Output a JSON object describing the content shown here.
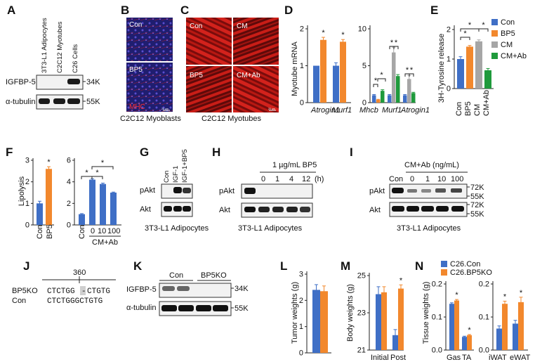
{
  "colors": {
    "con": "#3f6fc6",
    "bp5": "#f2882d",
    "cm": "#a6a6a6",
    "cmab": "#1f9a3c",
    "star": "#111111"
  },
  "panels": {
    "A": {
      "letter": "A",
      "lanes": [
        "3T3-L1 Adipocytes",
        "C2C12 Myotubes",
        "C26 Cells"
      ],
      "rows": [
        "IGFBP-5",
        "α-tubulin"
      ],
      "markers": [
        "34K",
        "55K"
      ]
    },
    "B": {
      "letter": "B",
      "label_top": "Con",
      "label_bottom": "BP5",
      "stain": "MHC",
      "caption": "C2C12 Myoblasts",
      "scale": "20 µm"
    },
    "C": {
      "letter": "C",
      "labels": [
        "Con",
        "CM",
        "BP5",
        "CM+Ab"
      ],
      "caption": "C2C12 Myotubes",
      "scale": "20 µm"
    },
    "D": {
      "letter": "D",
      "ylabel": "Myotube mRNA",
      "left_yticks": [
        "0",
        "1",
        "2"
      ],
      "right_yticks": [
        "0",
        "5",
        "10"
      ],
      "left_genes": [
        "Atrogin1",
        "Murf1"
      ],
      "right_genes": [
        "Mhcb",
        "Murf1",
        "Atrogin1"
      ]
    },
    "E": {
      "letter": "E",
      "ylabel": "3H-Tyrosine release",
      "yticks": [
        "0",
        "1",
        "2"
      ],
      "categories": [
        "Con",
        "BP5",
        "CM",
        "CM+Ab"
      ],
      "legend": [
        "Con",
        "BP5",
        "CM",
        "CM+Ab"
      ]
    },
    "F": {
      "letter": "F",
      "ylabel": "Lipolysis",
      "left_yticks": [
        "0",
        "1",
        "2",
        "3"
      ],
      "right_yticks": [
        "0",
        "2",
        "4",
        "6"
      ],
      "left_categories": [
        "Con",
        "BP5"
      ],
      "right_categories": [
        "Con",
        "0",
        "10",
        "100"
      ],
      "right_group": "CM+Ab"
    },
    "G": {
      "letter": "G",
      "lanes": [
        "Con",
        "IGF-1",
        "IGF-1+BP5"
      ],
      "rows": [
        "pAkt",
        "Akt"
      ],
      "caption": "3T3-L1 Adipocytes"
    },
    "H": {
      "letter": "H",
      "header": "1 µg/mL BP5",
      "lanes": [
        "0",
        "1",
        "4",
        "12"
      ],
      "unit": "(h)",
      "rows": [
        "pAkt",
        "Akt"
      ],
      "caption": "3T3-L1 Adipocytes"
    },
    "I": {
      "letter": "I",
      "header": "CM+Ab (ng/mL)",
      "lanes": [
        "Con",
        "0",
        "1",
        "10",
        "100"
      ],
      "rows": [
        "pAkt",
        "Akt"
      ],
      "markers": [
        "72K",
        "55K",
        "72K",
        "55K"
      ],
      "caption": "3T3-L1 Adipocytes"
    },
    "J": {
      "letter": "J",
      "position": "360",
      "row1_label": "BP5KO",
      "row1_left": "CTCTGG",
      "row1_gap": "-",
      "row1_right": "CTGTG",
      "row2_label": "Con",
      "row2_seq": "CTCTGGGCTGTG"
    },
    "K": {
      "letter": "K",
      "groups": [
        "Con",
        "BP5KO"
      ],
      "rows": [
        "IGFBP-5",
        "α-tubulin"
      ],
      "markers": [
        "34K",
        "55K"
      ]
    },
    "L": {
      "letter": "L",
      "ylabel": "Tumor weights (g)",
      "yticks": [
        "0",
        "1",
        "2",
        "3"
      ]
    },
    "M": {
      "letter": "M",
      "ylabel": "Body weights (g)",
      "yticks": [
        "21",
        "23",
        "25"
      ],
      "categories": [
        "Initial",
        "Post"
      ]
    },
    "N": {
      "letter": "N",
      "ylabel": "Tissue weights (g)",
      "left_yticks": [
        "0.0",
        "0.1",
        "0.2"
      ],
      "right_yticks": [
        "0.0",
        "0.1",
        "0.2"
      ],
      "left_categories": [
        "Gas",
        "TA"
      ],
      "right_categories": [
        "iWAT",
        "eWAT"
      ],
      "legend": [
        "C26.Con",
        "C26.BP5KO"
      ]
    }
  },
  "chart_data": [
    {
      "panel": "D-left",
      "type": "bar",
      "categories": [
        "Atrogin1",
        "Murf1"
      ],
      "series": [
        {
          "values": [
            1.0,
            1.0
          ],
          "errors": [
            0,
            0.08
          ]
        },
        {
          "values": [
            1.7,
            1.65
          ],
          "errors": [
            0.07,
            0.06
          ]
        }
      ],
      "ylim": [
        0,
        2
      ],
      "significant": [
        1,
        1
      ]
    },
    {
      "panel": "D-right",
      "type": "bar",
      "categories": [
        "Mhcb",
        "Murf1",
        "Atrogin1"
      ],
      "series": [
        {
          "values": [
            1.0,
            1.0,
            1.0
          ],
          "errors": [
            0.1,
            0.1,
            0.1
          ]
        },
        {
          "values": [
            0.4,
            0,
            0
          ],
          "errors": [
            0.05,
            0,
            0
          ]
        },
        {
          "values": [
            0,
            6.8,
            3.2
          ],
          "errors": [
            0,
            0.7,
            0.5
          ]
        },
        {
          "values": [
            1.6,
            3.6,
            1.3
          ],
          "errors": [
            0.15,
            0.2,
            0.1
          ]
        }
      ],
      "ylim": [
        0,
        10
      ]
    },
    {
      "panel": "E",
      "type": "bar",
      "categories": [
        "Con",
        "BP5",
        "CM",
        "CM+Ab"
      ],
      "values": [
        1.0,
        1.42,
        1.6,
        0.62
      ],
      "errors": [
        0.08,
        0.04,
        0.05,
        0.06
      ],
      "ylim": [
        0,
        2
      ]
    },
    {
      "panel": "F-left",
      "type": "bar",
      "categories": [
        "Con",
        "BP5"
      ],
      "values": [
        1.0,
        2.6
      ],
      "errors": [
        0.1,
        0.1
      ],
      "ylim": [
        0,
        3
      ]
    },
    {
      "panel": "F-right",
      "type": "bar",
      "categories": [
        "Con",
        "0",
        "10",
        "100"
      ],
      "values": [
        1.0,
        4.2,
        3.8,
        3.0
      ],
      "errors": [
        0.05,
        0.08,
        0.08,
        0.05
      ],
      "ylim": [
        0,
        6
      ]
    },
    {
      "panel": "L",
      "type": "bar",
      "categories": [
        "C26.Con",
        "C26.BP5KO"
      ],
      "values": [
        2.4,
        2.35
      ],
      "errors": [
        0.2,
        0.2
      ],
      "ylim": [
        0,
        3
      ]
    },
    {
      "panel": "M",
      "type": "bar",
      "categories": [
        "Initial",
        "Post"
      ],
      "series": [
        {
          "name": "C26.Con",
          "values": [
            24.0,
            21.8
          ],
          "errors": [
            0.4,
            0.3
          ]
        },
        {
          "name": "C26.BP5KO",
          "values": [
            24.1,
            24.3
          ],
          "errors": [
            0.3,
            0.2
          ]
        }
      ],
      "ylim": [
        21,
        25
      ]
    },
    {
      "panel": "N-left",
      "type": "bar",
      "categories": [
        "Gas",
        "TA"
      ],
      "series": [
        {
          "name": "C26.Con",
          "values": [
            0.14,
            0.04
          ],
          "errors": [
            0.003,
            0.002
          ]
        },
        {
          "name": "C26.BP5KO",
          "values": [
            0.15,
            0.045
          ],
          "errors": [
            0.003,
            0.002
          ]
        }
      ],
      "ylim": [
        0,
        0.2
      ]
    },
    {
      "panel": "N-right",
      "type": "bar",
      "categories": [
        "iWAT",
        "eWAT"
      ],
      "series": [
        {
          "name": "C26.Con",
          "values": [
            0.065,
            0.08
          ],
          "errors": [
            0.008,
            0.01
          ]
        },
        {
          "name": "C26.BP5KO",
          "values": [
            0.14,
            0.145
          ],
          "errors": [
            0.008,
            0.015
          ]
        }
      ],
      "ylim": [
        0,
        0.2
      ]
    }
  ]
}
